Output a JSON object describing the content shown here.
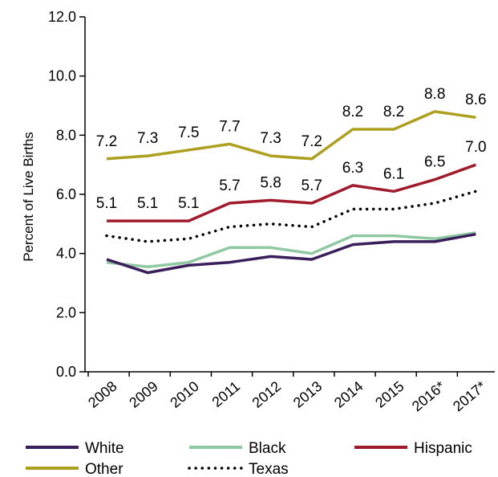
{
  "chart_data": {
    "type": "line",
    "title": "",
    "xlabel": "",
    "ylabel": "Percent of Live Births",
    "categories": [
      "2008",
      "2009",
      "2010",
      "2011",
      "2012",
      "2013",
      "2014",
      "2015",
      "2016*",
      "2017*"
    ],
    "ylim": [
      0,
      12
    ],
    "yticks": [
      "0.0",
      "2.0",
      "4.0",
      "6.0",
      "8.0",
      "10.0",
      "12.0"
    ],
    "grid": false,
    "legend_position": "bottom",
    "series": [
      {
        "name": "White",
        "color": "#3b1f5c",
        "style": "solid",
        "values": [
          3.8,
          3.35,
          3.6,
          3.7,
          3.9,
          3.8,
          4.3,
          4.4,
          4.4,
          4.65
        ],
        "labels": []
      },
      {
        "name": "Black",
        "color": "#8fc9a2",
        "style": "solid",
        "values": [
          3.7,
          3.55,
          3.7,
          4.2,
          4.2,
          4.0,
          4.6,
          4.6,
          4.5,
          4.7
        ],
        "labels": []
      },
      {
        "name": "Hispanic",
        "color": "#a01c2c",
        "style": "solid",
        "values": [
          5.1,
          5.1,
          5.1,
          5.7,
          5.8,
          5.7,
          6.3,
          6.1,
          6.5,
          7.0
        ],
        "labels": [
          "5.1",
          "5.1",
          "5.1",
          "5.7",
          "5.8",
          "5.7",
          "6.3",
          "6.1",
          "6.5",
          "7.0"
        ]
      },
      {
        "name": "Other",
        "color": "#ada021",
        "style": "solid",
        "values": [
          7.2,
          7.3,
          7.5,
          7.7,
          7.3,
          7.2,
          8.2,
          8.2,
          8.8,
          8.6
        ],
        "labels": [
          "7.2",
          "7.3",
          "7.5",
          "7.7",
          "7.3",
          "7.2",
          "8.2",
          "8.2",
          "8.8",
          "8.6"
        ]
      },
      {
        "name": "Texas",
        "color": "#000000",
        "style": "dotted",
        "values": [
          4.6,
          4.4,
          4.5,
          4.9,
          5.0,
          4.9,
          5.5,
          5.5,
          5.7,
          6.1
        ],
        "labels": []
      }
    ]
  }
}
